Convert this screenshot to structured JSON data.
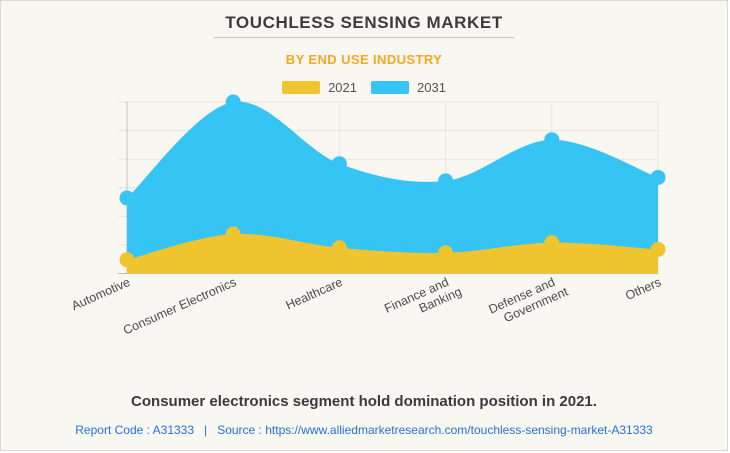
{
  "page": {
    "background": "#F9F7F1",
    "border_color": "#DED9D0"
  },
  "header": {
    "title": "TOUCHLESS SENSING MARKET",
    "subtitle": "BY END USE INDUSTRY",
    "subtitle_color": "#F7A824"
  },
  "legend": {
    "items": [
      {
        "label": "2021",
        "color": "#EFC42E"
      },
      {
        "label": "2031",
        "color": "#36C4F4"
      }
    ]
  },
  "chart_data": {
    "type": "area",
    "smoothed": true,
    "categories": [
      "Automotive",
      "Consumer Electronics",
      "Healthcare",
      "Finance and Banking",
      "Defense and Government",
      "Others"
    ],
    "category_label_lines": [
      [
        "Automotive"
      ],
      [
        "Consumer Electronics"
      ],
      [
        "Healthcare"
      ],
      [
        "Finance and",
        "Banking"
      ],
      [
        "Defense and",
        "Government"
      ],
      [
        "Others"
      ]
    ],
    "series": [
      {
        "name": "2031",
        "color": "#36C4F4",
        "values": [
          44,
          100,
          64,
          54,
          78,
          56
        ]
      },
      {
        "name": "2021",
        "color": "#EFC42E",
        "values": [
          8,
          23,
          15,
          12,
          18,
          14
        ]
      }
    ],
    "value_axis": {
      "min": 0,
      "max": 100,
      "gridline_count": 7,
      "labels_visible": false
    },
    "legend_position": "top",
    "grid": {
      "horizontal": true,
      "vertical": true
    }
  },
  "footer": {
    "note": "Consumer electronics segment hold domination position in 2021.",
    "report_code": "Report Code : A31333",
    "separator": "|",
    "source_label": "Source :",
    "source_url": "https://www.alliedmarketresearch.com/touchless-sensing-market-A31333",
    "link_color": "#2371E1"
  }
}
